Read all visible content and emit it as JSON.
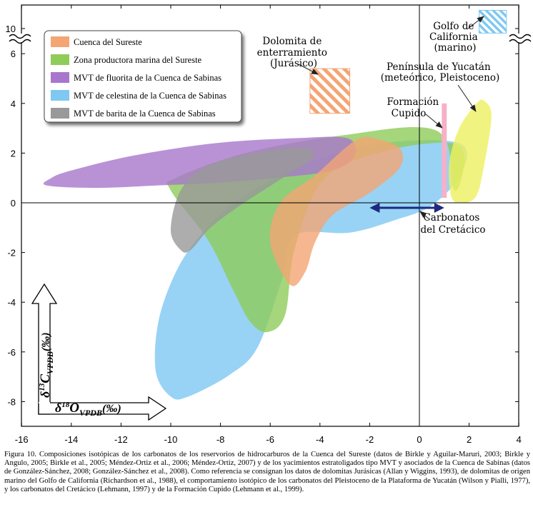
{
  "chart_data": {
    "type": "region",
    "title": "",
    "xlabel": "δ18O VPDB(‰)",
    "ylabel": "δ13C VPDB(‰)",
    "xlim": [
      -16,
      4
    ],
    "ylim": [
      -9,
      11
    ],
    "x_ticks": [
      "-16",
      "-14",
      "-12",
      "-10",
      "-8",
      "-6",
      "-4",
      "-2",
      "0",
      "2",
      "4"
    ],
    "y_ticks": [
      "-8",
      "-6",
      "-4",
      "-2",
      "0",
      "2",
      "4",
      "6",
      "10"
    ],
    "axis_break": "y between 6 and 10",
    "ylabel_parts": {
      "delta": "δ",
      "sup": "13",
      "letter": "C",
      "sub": "VPDB",
      "unit": "(‰)"
    },
    "xlabel_parts": {
      "delta": "δ",
      "sup": "18",
      "letter": "O",
      "sub": "VPDB",
      "unit": "(‰)"
    },
    "legend": [
      {
        "label": "Cuenca del Sureste",
        "color": "#f4a574"
      },
      {
        "label": "Zona productora marina del Sureste",
        "color": "#8fcc5a"
      },
      {
        "label": "MVT de fluorita de la Cuenca de Sabinas",
        "color": "#a877cc"
      },
      {
        "label": "MVT de celestina de la Cuenca de Sabinas",
        "color": "#7ec8f2"
      },
      {
        "label": "MVT de barita de la Cuenca de Sabinas",
        "color": "#999999"
      }
    ],
    "regions": [
      {
        "name": "MVT de celestina de la Cuenca de Sabinas",
        "color": "#7ec8f2",
        "outline": [
          [
            -10.0,
            -7.8
          ],
          [
            -10.6,
            -6.8
          ],
          [
            -10.5,
            -4.8
          ],
          [
            -9.8,
            -2.8
          ],
          [
            -8.8,
            -1.3
          ],
          [
            -7.2,
            0.2
          ],
          [
            -4.5,
            1.6
          ],
          [
            -1.5,
            2.4
          ],
          [
            1.6,
            2.4
          ],
          [
            1.7,
            1.2
          ],
          [
            0.5,
            -0.1
          ],
          [
            -1.0,
            -0.7
          ],
          [
            -2.8,
            -1.2
          ],
          [
            -5.0,
            -1.3
          ],
          [
            -5.5,
            -3.0
          ],
          [
            -6.5,
            -5.8
          ],
          [
            -7.6,
            -6.9
          ],
          [
            -9.3,
            -7.8
          ]
        ]
      },
      {
        "name": "Zona productora marina del Sureste",
        "color": "#8fcc5a",
        "outline": [
          [
            -6.1,
            -5.2
          ],
          [
            -5.4,
            -4.5
          ],
          [
            -5.0,
            -1.8
          ],
          [
            -3.8,
            1.0
          ],
          [
            -1.3,
            2.1
          ],
          [
            1.3,
            2.4
          ],
          [
            1.8,
            1.7
          ],
          [
            1.4,
            0.5
          ],
          [
            0.7,
            2.9
          ],
          [
            -3.2,
            2.7
          ],
          [
            -7.0,
            2.0
          ],
          [
            -9.8,
            1.0
          ],
          [
            -10.0,
            0.5
          ],
          [
            -8.5,
            -1.5
          ],
          [
            -7.5,
            -3.5
          ],
          [
            -6.8,
            -4.8
          ]
        ]
      },
      {
        "name": "MVT de fluorita de la Cuenca de Sabinas",
        "color": "#a877cc",
        "outline": [
          [
            -14.8,
            1.0
          ],
          [
            -15.0,
            0.7
          ],
          [
            -13.0,
            0.6
          ],
          [
            -10.5,
            0.7
          ],
          [
            -8.2,
            0.8
          ],
          [
            -5.8,
            1.0
          ],
          [
            -3.5,
            1.3
          ],
          [
            -2.6,
            1.9
          ],
          [
            -2.9,
            2.6
          ],
          [
            -5.0,
            2.6
          ],
          [
            -8.2,
            2.4
          ],
          [
            -11.5,
            1.9
          ],
          [
            -14.0,
            1.3
          ]
        ]
      },
      {
        "name": "MVT de barita de la Cuenca de Sabinas",
        "color": "#999999",
        "outline": [
          [
            -9.6,
            -1.9
          ],
          [
            -10.0,
            -1.1
          ],
          [
            -9.6,
            0.5
          ],
          [
            -8.5,
            1.5
          ],
          [
            -6.6,
            2.0
          ],
          [
            -4.6,
            2.2
          ],
          [
            -4.3,
            1.8
          ],
          [
            -5.5,
            1.0
          ],
          [
            -7.2,
            -0.1
          ],
          [
            -8.4,
            -1.0
          ],
          [
            -9.2,
            -1.9
          ]
        ]
      },
      {
        "name": "Cuenca del Sureste",
        "color": "#f4a574",
        "outline": [
          [
            -5.2,
            -3.3
          ],
          [
            -6.0,
            -1.6
          ],
          [
            -5.6,
            0.0
          ],
          [
            -4.2,
            1.1
          ],
          [
            -3.1,
            2.1
          ],
          [
            -2.4,
            2.6
          ],
          [
            -1.8,
            2.6
          ],
          [
            -0.8,
            2.2
          ],
          [
            -0.8,
            1.4
          ],
          [
            -2.0,
            0.4
          ],
          [
            -3.5,
            -0.5
          ],
          [
            -4.2,
            -1.6
          ],
          [
            -4.6,
            -2.8
          ]
        ]
      },
      {
        "name": "Península de Yucatán (meteórico, Pleistoceno)",
        "color": "#eef060",
        "outline": [
          [
            1.3,
            0.2
          ],
          [
            1.2,
            1.6
          ],
          [
            1.6,
            3.0
          ],
          [
            2.3,
            4.0
          ],
          [
            2.6,
            4.1
          ],
          [
            2.9,
            3.5
          ],
          [
            2.6,
            1.5
          ],
          [
            2.3,
            0.3
          ],
          [
            1.8,
            0.0
          ]
        ]
      }
    ],
    "rects": [
      {
        "label": "Dolomita de enterramiento (Jurásico)",
        "x": [
          -4.4,
          -2.8
        ],
        "y": [
          3.6,
          5.4
        ],
        "color": "#f4a574",
        "hatch": true
      },
      {
        "label": "Golfo de California (marino)",
        "x": [
          2.4,
          3.5
        ],
        "y": [
          9.8,
          10.8
        ],
        "color": "#7ec8f2",
        "hatch": true
      },
      {
        "label": "Formación Cupido",
        "x": [
          0.9,
          1.1
        ],
        "y": [
          0.2,
          4.0
        ],
        "color": "#f6b0c8",
        "hatch": false
      }
    ],
    "arrow": {
      "label": "Carbonatos del Cretácico",
      "x": [
        -2.0,
        1.0
      ],
      "y": 0
    },
    "annotations": {
      "dolomita": [
        "Dolomita de",
        "enterramiento",
        "(Jurásico)"
      ],
      "golfo": [
        "Golfo de",
        "California",
        "(marino)"
      ],
      "yucatan": [
        "Península de Yucatán",
        "(meteórico, Pleistoceno)"
      ],
      "cupido": [
        "Formación",
        "Cupido"
      ],
      "carbonatos": [
        "Carbonatos",
        "del Cretácico"
      ]
    }
  },
  "caption": "Figura 10. Composiciones isotópicas de los carbonatos de los reservorios de hidrocarburos de la Cuenca del Sureste (datos de Birkle y Aguilar-Maruri, 2003; Birkle y Angulo, 2005; Birkle et al., 2005; Méndez-Ortiz et al., 2006; Méndez-Ortiz, 2007) y de los yacimientos estratoligados tipo MVT y asociados de la Cuenca de Sabinas (datos de González-Sánchez, 2008; González-Sánchez et al., 2008). Como referencia se consignan los datos de dolomitas Jurásicas (Allan y Wiggins, 1993), de dolomitas de origen marino del Golfo de California (Richardson et al., 1988), el comportamiento isotópico de los carbonatos del Pleistoceno de la Plataforma de Yucatán (Wilson y Pialli, 1977), y los carbonatos del Cretácico (Lehmann, 1997) y de la Formación Cupido (Lehmann et al., 1999)."
}
